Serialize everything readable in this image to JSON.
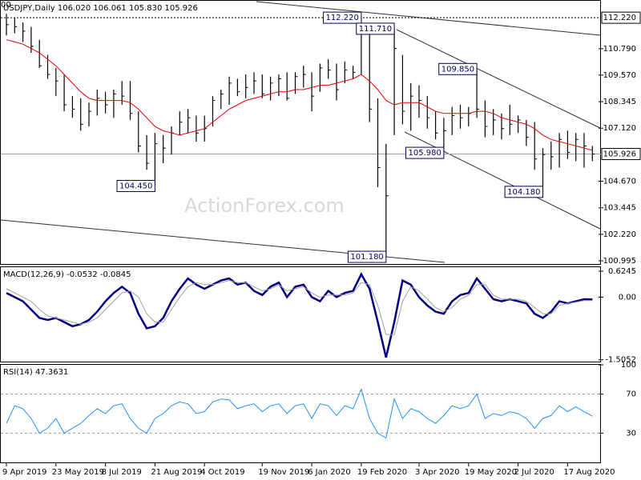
{
  "chart_data": [
    {
      "type": "ohlc",
      "title": "USDJPY,Daily  106.020 106.061 105.830 105.926",
      "corner_label": "00",
      "watermark": "ActionForex.com",
      "categories": [
        "9 Apr 2019",
        null,
        null,
        null,
        null,
        null,
        "23 May 2019",
        null,
        null,
        null,
        null,
        null,
        "8 Jul 2019",
        null,
        null,
        null,
        null,
        null,
        "21 Aug 2019",
        null,
        null,
        null,
        null,
        null,
        "4 Oct 2019",
        null,
        null,
        null,
        null,
        null,
        null,
        "19 Nov 2019",
        null,
        null,
        null,
        null,
        null,
        "6 Jan 2020",
        null,
        null,
        null,
        null,
        null,
        "19 Feb 2020",
        null,
        null,
        null,
        null,
        null,
        null,
        "3 Apr 2020",
        null,
        null,
        null,
        null,
        null,
        "19 May 2020",
        null,
        null,
        null,
        null,
        null,
        "2 Jul 2020",
        null,
        null,
        null,
        null,
        null,
        "17 Aug 2020",
        null,
        null,
        null
      ],
      "high": [
        112.4,
        112.2,
        112.0,
        111.8,
        111.2,
        110.5,
        109.9,
        109.6,
        108.6,
        108.5,
        108.3,
        108.9,
        108.8,
        108.9,
        109.3,
        109.3,
        107.9,
        106.8,
        106.9,
        106.8,
        107.2,
        107.9,
        108.0,
        107.7,
        107.7,
        108.6,
        108.9,
        109.5,
        109.4,
        109.6,
        109.7,
        109.6,
        109.5,
        109.6,
        109.7,
        109.7,
        110.0,
        109.7,
        110.1,
        110.3,
        110.1,
        110.2,
        110.0,
        112.22,
        111.5,
        108.5,
        106.4,
        111.71,
        110.5,
        109.2,
        109.1,
        108.6,
        107.9,
        107.6,
        108.1,
        108.2,
        108.1,
        109.85,
        108.4,
        108.0,
        107.8,
        108.2,
        107.7,
        107.5,
        107.4,
        106.2,
        106.5,
        106.9,
        107.0,
        106.9,
        106.9,
        106.3
      ],
      "low": [
        111.4,
        111.5,
        111.1,
        110.6,
        109.9,
        109.4,
        108.6,
        107.9,
        107.6,
        107.0,
        107.2,
        107.7,
        107.8,
        107.6,
        108.2,
        107.5,
        106.0,
        105.2,
        104.45,
        105.5,
        105.9,
        106.8,
        106.9,
        106.5,
        106.5,
        107.2,
        108.0,
        108.2,
        108.6,
        108.5,
        108.7,
        108.5,
        108.4,
        108.6,
        108.4,
        108.7,
        109.0,
        107.9,
        108.8,
        109.4,
        108.4,
        109.2,
        109.4,
        109.6,
        107.4,
        104.4,
        101.18,
        106.8,
        107.3,
        107.0,
        107.6,
        107.1,
        106.6,
        105.98,
        106.8,
        107.1,
        107.2,
        107.6,
        106.7,
        106.8,
        106.6,
        106.8,
        106.9,
        106.3,
        105.2,
        104.18,
        105.2,
        105.3,
        105.7,
        105.6,
        105.3,
        105.6
      ],
      "close": [
        111.9,
        111.8,
        111.6,
        110.9,
        110.0,
        109.6,
        109.3,
        108.2,
        108.0,
        107.3,
        107.9,
        108.5,
        108.2,
        108.7,
        108.6,
        107.8,
        106.3,
        105.5,
        106.4,
        106.2,
        106.9,
        107.4,
        107.6,
        106.9,
        107.1,
        108.4,
        108.7,
        109.2,
        108.8,
        109.0,
        109.3,
        108.7,
        109.2,
        109.4,
        108.5,
        109.5,
        109.6,
        108.6,
        109.9,
        109.8,
        108.9,
        109.8,
        109.7,
        111.6,
        108.0,
        105.3,
        104.0,
        110.8,
        107.9,
        108.6,
        108.4,
        107.6,
        106.9,
        107.0,
        107.7,
        107.6,
        107.8,
        108.0,
        107.2,
        107.5,
        107.1,
        107.3,
        107.5,
        106.7,
        105.7,
        105.9,
        105.8,
        106.6,
        106.0,
        106.6,
        106.3,
        105.926
      ],
      "color": "#000000",
      "ma": {
        "color": "#e00000",
        "values": [
          111.2,
          111.1,
          111.0,
          110.8,
          110.6,
          110.3,
          110.0,
          109.6,
          109.2,
          108.8,
          108.5,
          108.4,
          108.4,
          108.4,
          108.4,
          108.3,
          108.0,
          107.6,
          107.2,
          107.0,
          106.9,
          106.8,
          106.9,
          107.0,
          107.1,
          107.4,
          107.7,
          108.0,
          108.2,
          108.4,
          108.5,
          108.6,
          108.7,
          108.8,
          108.8,
          108.9,
          108.9,
          109.0,
          109.1,
          109.1,
          109.2,
          109.3,
          109.4,
          109.6,
          109.3,
          108.9,
          108.4,
          108.2,
          108.3,
          108.3,
          108.3,
          108.1,
          107.9,
          107.8,
          107.8,
          107.8,
          107.8,
          107.9,
          107.9,
          107.8,
          107.6,
          107.5,
          107.4,
          107.3,
          107.1,
          106.8,
          106.6,
          106.5,
          106.4,
          106.3,
          106.2,
          106.1
        ]
      },
      "ylim": [
        100.85,
        113.0
      ],
      "yticks": [
        100.995,
        {
          "value": 102.22,
          "label": "102.220"
        },
        103.445,
        {
          "value": 104.67,
          "label": "104.670"
        },
        {
          "value": 107.12,
          "label": "107.120"
        },
        108.345,
        {
          "value": 109.57,
          "label": "109.570"
        },
        {
          "value": 110.79,
          "label": "110.790"
        }
      ],
      "markers": [
        {
          "value": 112.22,
          "label": "112.220",
          "line": "dashed"
        },
        {
          "value": 105.926,
          "label": "105.926",
          "line": "solid"
        }
      ],
      "annotations": [
        {
          "label": "112.220",
          "value": 112.22,
          "index": 43
        },
        {
          "label": "111.710",
          "value": 111.71,
          "index": 47
        },
        {
          "label": "109.850",
          "value": 109.85,
          "index": 57
        },
        {
          "label": "105.980",
          "value": 105.98,
          "index": 53
        },
        {
          "label": "104.450",
          "value": 104.45,
          "index": 18
        },
        {
          "label": "104.180",
          "value": 104.18,
          "index": 65
        },
        {
          "label": "101.180",
          "value": 101.18,
          "index": 46
        }
      ]
    },
    {
      "type": "macd",
      "title": "MACD(12,26,9) -0.0532 -0.0845",
      "ylim": [
        -1.55,
        0.72
      ],
      "yticks": [
        0.6245,
        {
          "value": 0,
          "label": "0.00"
        },
        -1.5052
      ],
      "series": [
        {
          "color": "#000080",
          "values": [
            0.1,
            0.0,
            -0.1,
            -0.3,
            -0.5,
            -0.55,
            -0.5,
            -0.6,
            -0.7,
            -0.65,
            -0.55,
            -0.35,
            -0.1,
            0.1,
            0.25,
            0.1,
            -0.4,
            -0.75,
            -0.7,
            -0.5,
            -0.1,
            0.2,
            0.45,
            0.3,
            0.2,
            0.3,
            0.4,
            0.45,
            0.3,
            0.35,
            0.15,
            0.05,
            0.25,
            0.35,
            0.0,
            0.25,
            0.3,
            0.0,
            -0.1,
            0.15,
            0.0,
            0.1,
            0.15,
            0.55,
            0.2,
            -0.6,
            -1.45,
            -0.6,
            0.4,
            0.3,
            0.0,
            -0.2,
            -0.35,
            -0.4,
            -0.1,
            0.05,
            0.1,
            0.45,
            0.2,
            -0.05,
            -0.1,
            -0.05,
            -0.1,
            -0.15,
            -0.4,
            -0.5,
            -0.35,
            -0.1,
            -0.15,
            -0.1,
            -0.05,
            -0.0532
          ]
        },
        {
          "color": "#a0a0a0",
          "values": [
            0.2,
            0.1,
            0.0,
            -0.1,
            -0.3,
            -0.45,
            -0.5,
            -0.55,
            -0.6,
            -0.65,
            -0.6,
            -0.5,
            -0.3,
            -0.1,
            0.1,
            0.15,
            0.0,
            -0.4,
            -0.6,
            -0.6,
            -0.3,
            0.0,
            0.25,
            0.35,
            0.3,
            0.3,
            0.35,
            0.4,
            0.35,
            0.35,
            0.25,
            0.15,
            0.2,
            0.3,
            0.15,
            0.2,
            0.25,
            0.1,
            0.0,
            0.05,
            0.05,
            0.05,
            0.1,
            0.35,
            0.3,
            -0.2,
            -0.9,
            -0.9,
            -0.1,
            0.25,
            0.15,
            -0.05,
            -0.25,
            -0.35,
            -0.25,
            -0.05,
            0.05,
            0.3,
            0.3,
            0.05,
            -0.05,
            -0.05,
            -0.05,
            -0.1,
            -0.25,
            -0.4,
            -0.4,
            -0.2,
            -0.15,
            -0.12,
            -0.08,
            -0.0845
          ]
        }
      ]
    },
    {
      "type": "rsi",
      "title": "RSI(14) 47.3631",
      "ylim": [
        0,
        100
      ],
      "yticks": [
        100,
        70,
        30
      ],
      "levels": [
        70,
        30
      ],
      "series": [
        {
          "color": "#1e90ff",
          "values": [
            40,
            58,
            55,
            45,
            30,
            35,
            45,
            30,
            35,
            40,
            48,
            55,
            50,
            58,
            60,
            45,
            35,
            30,
            45,
            50,
            58,
            62,
            60,
            50,
            52,
            62,
            65,
            64,
            55,
            58,
            60,
            52,
            58,
            60,
            50,
            58,
            60,
            45,
            60,
            58,
            48,
            58,
            55,
            75,
            45,
            30,
            25,
            65,
            45,
            55,
            52,
            45,
            40,
            48,
            58,
            55,
            58,
            70,
            45,
            50,
            48,
            52,
            50,
            45,
            35,
            45,
            48,
            58,
            52,
            57,
            52,
            47.3631
          ]
        }
      ]
    }
  ]
}
